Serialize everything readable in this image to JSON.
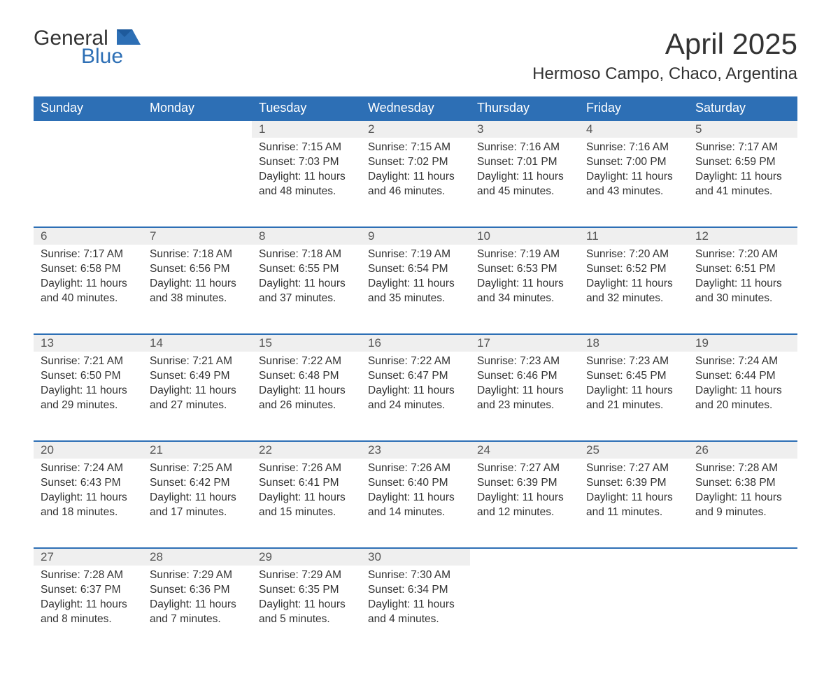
{
  "logo": {
    "text1": "General",
    "text2": "Blue"
  },
  "title": "April 2025",
  "location": "Hermoso Campo, Chaco, Argentina",
  "colors": {
    "header_bg": "#2d6fb5",
    "header_text": "#ffffff",
    "daynum_bg": "#efefef",
    "row_divider": "#2d6fb5",
    "body_text": "#333333",
    "page_bg": "#ffffff"
  },
  "weekdays": [
    "Sunday",
    "Monday",
    "Tuesday",
    "Wednesday",
    "Thursday",
    "Friday",
    "Saturday"
  ],
  "first_weekday_index": 2,
  "days": [
    {
      "n": 1,
      "sunrise": "7:15 AM",
      "sunset": "7:03 PM",
      "daylight": "11 hours and 48 minutes."
    },
    {
      "n": 2,
      "sunrise": "7:15 AM",
      "sunset": "7:02 PM",
      "daylight": "11 hours and 46 minutes."
    },
    {
      "n": 3,
      "sunrise": "7:16 AM",
      "sunset": "7:01 PM",
      "daylight": "11 hours and 45 minutes."
    },
    {
      "n": 4,
      "sunrise": "7:16 AM",
      "sunset": "7:00 PM",
      "daylight": "11 hours and 43 minutes."
    },
    {
      "n": 5,
      "sunrise": "7:17 AM",
      "sunset": "6:59 PM",
      "daylight": "11 hours and 41 minutes."
    },
    {
      "n": 6,
      "sunrise": "7:17 AM",
      "sunset": "6:58 PM",
      "daylight": "11 hours and 40 minutes."
    },
    {
      "n": 7,
      "sunrise": "7:18 AM",
      "sunset": "6:56 PM",
      "daylight": "11 hours and 38 minutes."
    },
    {
      "n": 8,
      "sunrise": "7:18 AM",
      "sunset": "6:55 PM",
      "daylight": "11 hours and 37 minutes."
    },
    {
      "n": 9,
      "sunrise": "7:19 AM",
      "sunset": "6:54 PM",
      "daylight": "11 hours and 35 minutes."
    },
    {
      "n": 10,
      "sunrise": "7:19 AM",
      "sunset": "6:53 PM",
      "daylight": "11 hours and 34 minutes."
    },
    {
      "n": 11,
      "sunrise": "7:20 AM",
      "sunset": "6:52 PM",
      "daylight": "11 hours and 32 minutes."
    },
    {
      "n": 12,
      "sunrise": "7:20 AM",
      "sunset": "6:51 PM",
      "daylight": "11 hours and 30 minutes."
    },
    {
      "n": 13,
      "sunrise": "7:21 AM",
      "sunset": "6:50 PM",
      "daylight": "11 hours and 29 minutes."
    },
    {
      "n": 14,
      "sunrise": "7:21 AM",
      "sunset": "6:49 PM",
      "daylight": "11 hours and 27 minutes."
    },
    {
      "n": 15,
      "sunrise": "7:22 AM",
      "sunset": "6:48 PM",
      "daylight": "11 hours and 26 minutes."
    },
    {
      "n": 16,
      "sunrise": "7:22 AM",
      "sunset": "6:47 PM",
      "daylight": "11 hours and 24 minutes."
    },
    {
      "n": 17,
      "sunrise": "7:23 AM",
      "sunset": "6:46 PM",
      "daylight": "11 hours and 23 minutes."
    },
    {
      "n": 18,
      "sunrise": "7:23 AM",
      "sunset": "6:45 PM",
      "daylight": "11 hours and 21 minutes."
    },
    {
      "n": 19,
      "sunrise": "7:24 AM",
      "sunset": "6:44 PM",
      "daylight": "11 hours and 20 minutes."
    },
    {
      "n": 20,
      "sunrise": "7:24 AM",
      "sunset": "6:43 PM",
      "daylight": "11 hours and 18 minutes."
    },
    {
      "n": 21,
      "sunrise": "7:25 AM",
      "sunset": "6:42 PM",
      "daylight": "11 hours and 17 minutes."
    },
    {
      "n": 22,
      "sunrise": "7:26 AM",
      "sunset": "6:41 PM",
      "daylight": "11 hours and 15 minutes."
    },
    {
      "n": 23,
      "sunrise": "7:26 AM",
      "sunset": "6:40 PM",
      "daylight": "11 hours and 14 minutes."
    },
    {
      "n": 24,
      "sunrise": "7:27 AM",
      "sunset": "6:39 PM",
      "daylight": "11 hours and 12 minutes."
    },
    {
      "n": 25,
      "sunrise": "7:27 AM",
      "sunset": "6:39 PM",
      "daylight": "11 hours and 11 minutes."
    },
    {
      "n": 26,
      "sunrise": "7:28 AM",
      "sunset": "6:38 PM",
      "daylight": "11 hours and 9 minutes."
    },
    {
      "n": 27,
      "sunrise": "7:28 AM",
      "sunset": "6:37 PM",
      "daylight": "11 hours and 8 minutes."
    },
    {
      "n": 28,
      "sunrise": "7:29 AM",
      "sunset": "6:36 PM",
      "daylight": "11 hours and 7 minutes."
    },
    {
      "n": 29,
      "sunrise": "7:29 AM",
      "sunset": "6:35 PM",
      "daylight": "11 hours and 5 minutes."
    },
    {
      "n": 30,
      "sunrise": "7:30 AM",
      "sunset": "6:34 PM",
      "daylight": "11 hours and 4 minutes."
    }
  ],
  "labels": {
    "sunrise": "Sunrise:",
    "sunset": "Sunset:",
    "daylight": "Daylight:"
  }
}
